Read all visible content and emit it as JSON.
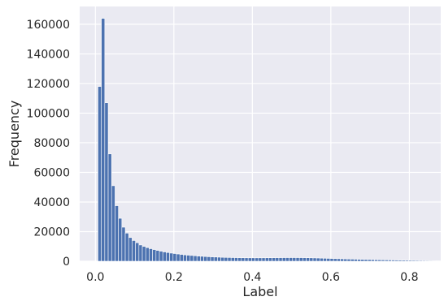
{
  "chart_data": {
    "type": "bar",
    "subtype": "histogram",
    "xlabel": "Label",
    "ylabel": "Frequency",
    "xlim": [
      -0.04,
      0.88
    ],
    "ylim": [
      0,
      172000
    ],
    "xticks": [
      "0.0",
      "0.2",
      "0.4",
      "0.6",
      "0.8"
    ],
    "xtick_values": [
      0.0,
      0.2,
      0.4,
      0.6,
      0.8
    ],
    "yticks": [
      "0",
      "20000",
      "40000",
      "60000",
      "80000",
      "100000",
      "120000",
      "140000",
      "160000"
    ],
    "ytick_values": [
      0,
      20000,
      40000,
      60000,
      80000,
      100000,
      120000,
      140000,
      160000
    ],
    "grid": true,
    "background": "#eaeaf2",
    "bar_color": "#4c72b0",
    "bin_width": 0.0087,
    "bins_x": [
      0.0065,
      0.0152,
      0.0239,
      0.0326,
      0.0413,
      0.05,
      0.0587,
      0.0674,
      0.0761,
      0.0848,
      0.0935,
      0.1022,
      0.1109,
      0.1196,
      0.1283,
      0.137,
      0.1457,
      0.1544,
      0.1631,
      0.1718,
      0.1805,
      0.1892,
      0.1979,
      0.2066,
      0.2153,
      0.224,
      0.2327,
      0.2414,
      0.2501,
      0.2588,
      0.2675,
      0.2762,
      0.2849,
      0.2936,
      0.3023,
      0.311,
      0.3197,
      0.3284,
      0.3371,
      0.3458,
      0.3545,
      0.3632,
      0.3719,
      0.3806,
      0.3893,
      0.398,
      0.4067,
      0.4154,
      0.4241,
      0.4328,
      0.4415,
      0.4502,
      0.4589,
      0.4676,
      0.4763,
      0.485,
      0.4937,
      0.5024,
      0.5111,
      0.5198,
      0.5285,
      0.5372,
      0.5459,
      0.5546,
      0.5633,
      0.572,
      0.5807,
      0.5894,
      0.5981,
      0.6068,
      0.6155,
      0.6242,
      0.6329,
      0.6416,
      0.6503,
      0.659,
      0.6677,
      0.6764,
      0.6851,
      0.6938,
      0.7025,
      0.7112,
      0.7199,
      0.7286,
      0.7373,
      0.746,
      0.7547,
      0.7634,
      0.7721,
      0.7808,
      0.7895,
      0.7982,
      0.8069,
      0.8156,
      0.8243,
      0.833,
      0.8417,
      0.8504,
      0.8591,
      0.8678
    ],
    "values": [
      118000,
      164000,
      107000,
      72500,
      51000,
      37500,
      29000,
      23000,
      19000,
      16000,
      14000,
      12500,
      11000,
      10000,
      9200,
      8500,
      7900,
      7300,
      6800,
      6300,
      5900,
      5500,
      5200,
      4900,
      4600,
      4300,
      4100,
      3900,
      3700,
      3500,
      3350,
      3200,
      3050,
      2950,
      2850,
      2750,
      2650,
      2580,
      2520,
      2460,
      2420,
      2380,
      2340,
      2320,
      2300,
      2290,
      2290,
      2300,
      2310,
      2330,
      2350,
      2370,
      2390,
      2410,
      2430,
      2440,
      2450,
      2450,
      2440,
      2420,
      2390,
      2350,
      2300,
      2240,
      2170,
      2090,
      2010,
      1930,
      1850,
      1770,
      1700,
      1630,
      1560,
      1490,
      1430,
      1370,
      1310,
      1250,
      1200,
      1150,
      1100,
      1050,
      1000,
      950,
      900,
      860,
      820,
      780,
      740,
      700,
      660,
      620,
      580,
      540,
      500,
      460,
      420,
      380,
      340,
      300
    ]
  }
}
